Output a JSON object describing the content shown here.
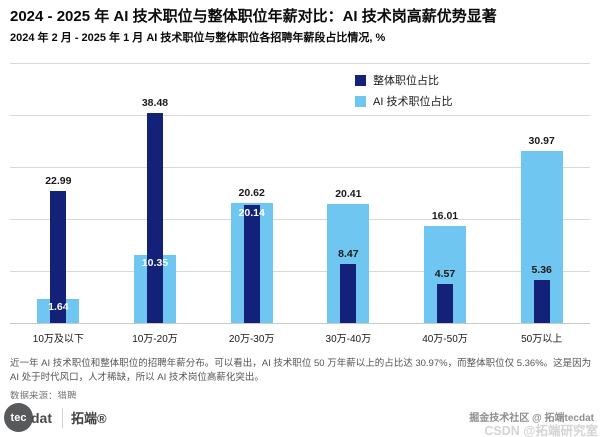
{
  "header": {
    "title": "2024 - 2025 年 AI 技术职位与整体职位年薪对比：AI 技术岗高薪优势显著",
    "subtitle": "2024 年 2 月 - 2025 年 1 月 AI 技术职位与整体职位各招聘年薪段占比情况, %"
  },
  "chart_data": {
    "type": "bar",
    "categories": [
      "10万及以下",
      "10万-20万",
      "20万-30万",
      "30万-40万",
      "40万-50万",
      "50万以上"
    ],
    "series": [
      {
        "name": "整体职位占比",
        "color": "#132278",
        "values": [
          22.99,
          38.48,
          20.14,
          8.47,
          4.57,
          5.36
        ]
      },
      {
        "name": "AI 技术职位占比",
        "color": "#6ec6f1",
        "values": [
          1.64,
          10.35,
          20.62,
          20.41,
          16.01,
          30.97
        ]
      }
    ],
    "ylabel": "%",
    "ylim": [
      0,
      50
    ],
    "grid": true,
    "legend_position": "top-center-overlay",
    "bar_style": "overlapped (narrow dark bar centered on wide light bar)",
    "label_colors": {
      "on_white": "#1a1a1a",
      "on_bar": "#ffffff"
    },
    "gridline_color": "#d9d9d9"
  },
  "footnote": "近一年 AI 技术职位和整体职位的招聘年薪分布。可以看出，AI 技术职位 50 万年薪以上的占比达 30.97%，而整体职位仅 5.36%。这是因为 AI 处于时代风口，人才稀缺，所以 AI 技术岗位高薪化突出。",
  "source": "数据来源：猎聘",
  "footer": {
    "logo_circle_text": "tec",
    "logo_text": "dat",
    "brand": "拓端®",
    "watermark_line1": "掘金技术社区 @ 拓端tecdat",
    "watermark_line2": "CSDN @拓端研究室"
  }
}
